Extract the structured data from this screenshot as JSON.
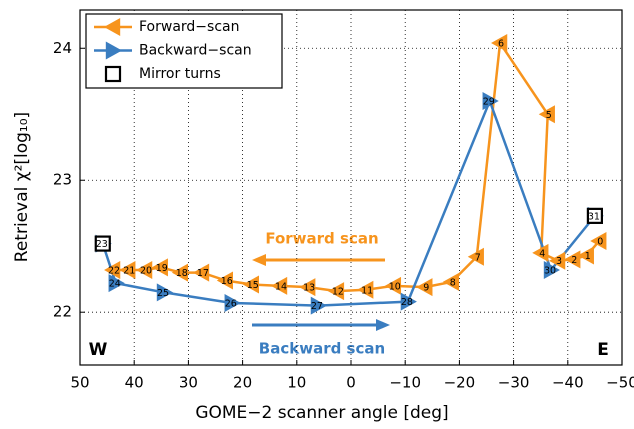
{
  "chart_data": {
    "type": "line",
    "xlabel": "GOME−2 scanner angle [deg]",
    "ylabel": "Retrieval χ²[log₁₀]",
    "xlim": [
      50,
      -50
    ],
    "xticks": [
      50,
      40,
      30,
      20,
      10,
      0,
      {
        "value": -10,
        "label": "−10"
      },
      {
        "value": -20,
        "label": "−20"
      },
      {
        "value": -30,
        "label": "−30"
      },
      {
        "value": -40,
        "label": "−40"
      },
      {
        "value": -50,
        "label": "−50"
      }
    ],
    "ylim": [
      21.6,
      24.29
    ],
    "yticks": [
      22,
      23,
      24
    ],
    "grid": true,
    "legend": "upper left",
    "annotations": [
      "Forward scan",
      "Backward scan",
      "W",
      "E"
    ],
    "series": [
      {
        "name": "Forward−scan",
        "color": "#f7941d",
        "marker": "triangle-left",
        "line": true,
        "x": [
          -45.8,
          -43.5,
          -41.0,
          -38.2,
          -35.1,
          -36.3,
          -27.5,
          -23.2,
          -18.6,
          -13.7,
          -7.9,
          -2.8,
          2.6,
          7.9,
          13.1,
          18.3,
          23.1,
          27.5,
          31.4,
          35.1,
          38.0,
          41.1,
          43.9
        ],
        "values": [
          22.54,
          22.43,
          22.4,
          22.39,
          22.45,
          23.5,
          24.04,
          22.42,
          22.23,
          22.19,
          22.2,
          22.17,
          22.16,
          22.19,
          22.2,
          22.21,
          22.24,
          22.3,
          22.3,
          22.34,
          22.32,
          22.32,
          22.32
        ],
        "labels": [
          "0",
          "1",
          "2",
          "3",
          "4",
          "5",
          "6",
          "7",
          "8",
          "9",
          "10",
          "11",
          "12",
          "13",
          "14",
          "15",
          "16",
          "17",
          "18",
          "19",
          "20",
          "21",
          "22"
        ]
      },
      {
        "name": "Backward−scan",
        "color": "#3a7dc0",
        "marker": "triangle-right",
        "line": true,
        "x": [
          45.8,
          43.4,
          34.5,
          22.0,
          6.1,
          -10.5,
          -25.6,
          -36.9,
          -45.0
        ],
        "values": [
          22.52,
          22.22,
          22.15,
          22.07,
          22.05,
          22.08,
          23.6,
          22.32,
          22.73
        ],
        "labels": [
          "23",
          "24",
          "25",
          "26",
          "27",
          "28",
          "29",
          "30",
          "31"
        ]
      },
      {
        "name": "Mirror turns",
        "color": "#000000",
        "marker": "square",
        "line": false,
        "x": [
          45.8,
          -45.0
        ],
        "values": [
          22.52,
          22.73
        ]
      }
    ]
  }
}
